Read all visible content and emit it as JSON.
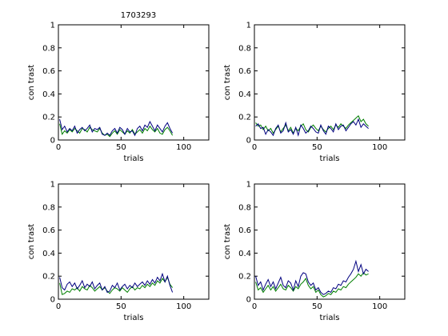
{
  "title": "1703293",
  "colors": {
    "series_green": "#007f00",
    "series_blue": "#00007f"
  },
  "chart_data": [
    {
      "type": "line",
      "xlabel": "trials",
      "ylabel": "con trast",
      "xlim": [
        0,
        120
      ],
      "ylim": [
        0,
        1
      ],
      "xticks": [
        "0",
        "50",
        "100"
      ],
      "yticks": [
        "0",
        "0.2",
        "0.4",
        "0.6",
        "0.8",
        "1"
      ],
      "grid": false,
      "series": [
        {
          "color": "#007f00",
          "x": [
            1,
            3,
            5,
            7,
            9,
            11,
            13,
            15,
            17,
            19,
            21,
            23,
            25,
            27,
            29,
            31,
            33,
            35,
            37,
            39,
            41,
            43,
            45,
            47,
            49,
            51,
            53,
            55,
            57,
            59,
            61,
            63,
            65,
            67,
            69,
            71,
            73,
            75,
            77,
            79,
            81,
            83,
            85,
            87,
            89,
            91
          ],
          "values": [
            0.14,
            0.05,
            0.08,
            0.06,
            0.09,
            0.07,
            0.1,
            0.08,
            0.06,
            0.1,
            0.09,
            0.07,
            0.11,
            0.09,
            0.08,
            0.07,
            0.1,
            0.06,
            0.04,
            0.05,
            0.03,
            0.06,
            0.08,
            0.05,
            0.09,
            0.07,
            0.05,
            0.08,
            0.06,
            0.09,
            0.05,
            0.07,
            0.09,
            0.06,
            0.1,
            0.08,
            0.12,
            0.09,
            0.07,
            0.1,
            0.06,
            0.05,
            0.09,
            0.11,
            0.08,
            0.04
          ]
        },
        {
          "color": "#00007f",
          "x": [
            1,
            3,
            5,
            7,
            9,
            11,
            13,
            15,
            17,
            19,
            21,
            23,
            25,
            27,
            29,
            31,
            33,
            35,
            37,
            39,
            41,
            43,
            45,
            47,
            49,
            51,
            53,
            55,
            57,
            59,
            61,
            63,
            65,
            67,
            69,
            71,
            73,
            75,
            77,
            79,
            81,
            83,
            85,
            87,
            89,
            91
          ],
          "values": [
            0.18,
            0.09,
            0.12,
            0.07,
            0.1,
            0.08,
            0.12,
            0.06,
            0.09,
            0.11,
            0.08,
            0.1,
            0.13,
            0.07,
            0.1,
            0.09,
            0.11,
            0.05,
            0.04,
            0.06,
            0.04,
            0.08,
            0.1,
            0.06,
            0.11,
            0.09,
            0.05,
            0.1,
            0.07,
            0.08,
            0.04,
            0.1,
            0.12,
            0.08,
            0.13,
            0.11,
            0.16,
            0.12,
            0.08,
            0.13,
            0.1,
            0.07,
            0.12,
            0.15,
            0.1,
            0.06
          ]
        }
      ]
    },
    {
      "type": "line",
      "xlabel": "trials",
      "ylabel": "con trast",
      "xlim": [
        0,
        120
      ],
      "ylim": [
        0,
        1
      ],
      "xticks": [
        "0",
        "50",
        "100"
      ],
      "yticks": [
        "0",
        "0.2",
        "0.4",
        "0.6",
        "0.8",
        "1"
      ],
      "grid": false,
      "series": [
        {
          "color": "#007f00",
          "x": [
            1,
            3,
            5,
            7,
            9,
            11,
            13,
            15,
            17,
            19,
            21,
            23,
            25,
            27,
            29,
            31,
            33,
            35,
            37,
            39,
            41,
            43,
            45,
            47,
            49,
            51,
            53,
            55,
            57,
            59,
            61,
            63,
            65,
            67,
            69,
            71,
            73,
            75,
            77,
            79,
            81,
            83,
            85,
            87,
            89,
            91
          ],
          "values": [
            0.15,
            0.12,
            0.13,
            0.09,
            0.12,
            0.08,
            0.1,
            0.06,
            0.09,
            0.12,
            0.07,
            0.1,
            0.13,
            0.08,
            0.11,
            0.06,
            0.1,
            0.08,
            0.12,
            0.14,
            0.09,
            0.07,
            0.11,
            0.13,
            0.1,
            0.08,
            0.12,
            0.09,
            0.07,
            0.1,
            0.12,
            0.09,
            0.13,
            0.11,
            0.14,
            0.12,
            0.1,
            0.13,
            0.15,
            0.17,
            0.19,
            0.21,
            0.16,
            0.18,
            0.14,
            0.12
          ]
        },
        {
          "color": "#00007f",
          "x": [
            1,
            3,
            5,
            7,
            9,
            11,
            13,
            15,
            17,
            19,
            21,
            23,
            25,
            27,
            29,
            31,
            33,
            35,
            37,
            39,
            41,
            43,
            45,
            47,
            49,
            51,
            53,
            55,
            57,
            59,
            61,
            63,
            65,
            67,
            69,
            71,
            73,
            75,
            77,
            79,
            81,
            83,
            85,
            87,
            89,
            91
          ],
          "values": [
            0.12,
            0.14,
            0.1,
            0.11,
            0.05,
            0.09,
            0.07,
            0.04,
            0.1,
            0.13,
            0.06,
            0.08,
            0.15,
            0.07,
            0.09,
            0.05,
            0.11,
            0.04,
            0.13,
            0.1,
            0.06,
            0.08,
            0.12,
            0.1,
            0.07,
            0.06,
            0.13,
            0.08,
            0.05,
            0.12,
            0.1,
            0.07,
            0.14,
            0.09,
            0.12,
            0.13,
            0.08,
            0.11,
            0.14,
            0.16,
            0.13,
            0.18,
            0.11,
            0.14,
            0.12,
            0.1
          ]
        }
      ]
    },
    {
      "type": "line",
      "xlabel": "trials",
      "ylabel": "con trast",
      "xlim": [
        0,
        120
      ],
      "ylim": [
        0,
        1
      ],
      "xticks": [
        "0",
        "50",
        "100"
      ],
      "yticks": [
        "0",
        "0.2",
        "0.4",
        "0.6",
        "0.8",
        "1"
      ],
      "grid": false,
      "series": [
        {
          "color": "#007f00",
          "x": [
            1,
            3,
            5,
            7,
            9,
            11,
            13,
            15,
            17,
            19,
            21,
            23,
            25,
            27,
            29,
            31,
            33,
            35,
            37,
            39,
            41,
            43,
            45,
            47,
            49,
            51,
            53,
            55,
            57,
            59,
            61,
            63,
            65,
            67,
            69,
            71,
            73,
            75,
            77,
            79,
            81,
            83,
            85,
            87,
            89,
            91
          ],
          "values": [
            0.14,
            0.04,
            0.05,
            0.07,
            0.06,
            0.09,
            0.08,
            0.1,
            0.07,
            0.11,
            0.09,
            0.08,
            0.12,
            0.1,
            0.07,
            0.09,
            0.11,
            0.08,
            0.1,
            0.07,
            0.05,
            0.08,
            0.1,
            0.09,
            0.07,
            0.1,
            0.08,
            0.06,
            0.09,
            0.11,
            0.08,
            0.1,
            0.09,
            0.12,
            0.1,
            0.13,
            0.11,
            0.14,
            0.12,
            0.16,
            0.14,
            0.18,
            0.15,
            0.19,
            0.13,
            0.1
          ]
        },
        {
          "color": "#00007f",
          "x": [
            1,
            3,
            5,
            7,
            9,
            11,
            13,
            15,
            17,
            19,
            21,
            23,
            25,
            27,
            29,
            31,
            33,
            35,
            37,
            39,
            41,
            43,
            45,
            47,
            49,
            51,
            53,
            55,
            57,
            59,
            61,
            63,
            65,
            67,
            69,
            71,
            73,
            75,
            77,
            79,
            81,
            83,
            85,
            87,
            89,
            91
          ],
          "values": [
            0.19,
            0.1,
            0.08,
            0.13,
            0.15,
            0.11,
            0.14,
            0.09,
            0.12,
            0.16,
            0.1,
            0.13,
            0.11,
            0.15,
            0.09,
            0.12,
            0.14,
            0.08,
            0.11,
            0.06,
            0.07,
            0.12,
            0.1,
            0.14,
            0.08,
            0.11,
            0.13,
            0.09,
            0.12,
            0.1,
            0.14,
            0.11,
            0.13,
            0.15,
            0.12,
            0.16,
            0.13,
            0.17,
            0.14,
            0.19,
            0.16,
            0.22,
            0.15,
            0.2,
            0.12,
            0.06
          ]
        }
      ]
    },
    {
      "type": "line",
      "xlabel": "trials",
      "ylabel": "con trast",
      "xlim": [
        0,
        120
      ],
      "ylim": [
        0,
        1
      ],
      "xticks": [
        "0",
        "50",
        "100"
      ],
      "yticks": [
        "0",
        "0.2",
        "0.4",
        "0.6",
        "0.8",
        "1"
      ],
      "grid": false,
      "series": [
        {
          "color": "#007f00",
          "x": [
            1,
            3,
            5,
            7,
            9,
            11,
            13,
            15,
            17,
            19,
            21,
            23,
            25,
            27,
            29,
            31,
            33,
            35,
            37,
            39,
            41,
            43,
            45,
            47,
            49,
            51,
            53,
            55,
            57,
            59,
            61,
            63,
            65,
            67,
            69,
            71,
            73,
            75,
            77,
            79,
            81,
            83,
            85,
            87,
            89,
            91
          ],
          "values": [
            0.15,
            0.08,
            0.1,
            0.06,
            0.09,
            0.12,
            0.08,
            0.11,
            0.07,
            0.1,
            0.13,
            0.09,
            0.08,
            0.12,
            0.1,
            0.07,
            0.11,
            0.09,
            0.13,
            0.15,
            0.18,
            0.12,
            0.09,
            0.11,
            0.06,
            0.08,
            0.04,
            0.02,
            0.03,
            0.05,
            0.04,
            0.07,
            0.06,
            0.09,
            0.08,
            0.11,
            0.1,
            0.13,
            0.15,
            0.17,
            0.19,
            0.22,
            0.2,
            0.23,
            0.21,
            0.22
          ]
        },
        {
          "color": "#00007f",
          "x": [
            1,
            3,
            5,
            7,
            9,
            11,
            13,
            15,
            17,
            19,
            21,
            23,
            25,
            27,
            29,
            31,
            33,
            35,
            37,
            39,
            41,
            43,
            45,
            47,
            49,
            51,
            53,
            55,
            57,
            59,
            61,
            63,
            65,
            67,
            69,
            71,
            73,
            75,
            77,
            79,
            81,
            83,
            85,
            87,
            89,
            91
          ],
          "values": [
            0.2,
            0.12,
            0.15,
            0.08,
            0.13,
            0.17,
            0.11,
            0.15,
            0.09,
            0.14,
            0.19,
            0.12,
            0.1,
            0.16,
            0.14,
            0.08,
            0.16,
            0.11,
            0.2,
            0.23,
            0.22,
            0.15,
            0.12,
            0.14,
            0.08,
            0.1,
            0.06,
            0.04,
            0.05,
            0.07,
            0.06,
            0.1,
            0.09,
            0.13,
            0.12,
            0.16,
            0.15,
            0.19,
            0.22,
            0.26,
            0.33,
            0.24,
            0.3,
            0.22,
            0.26,
            0.24
          ]
        }
      ]
    }
  ]
}
